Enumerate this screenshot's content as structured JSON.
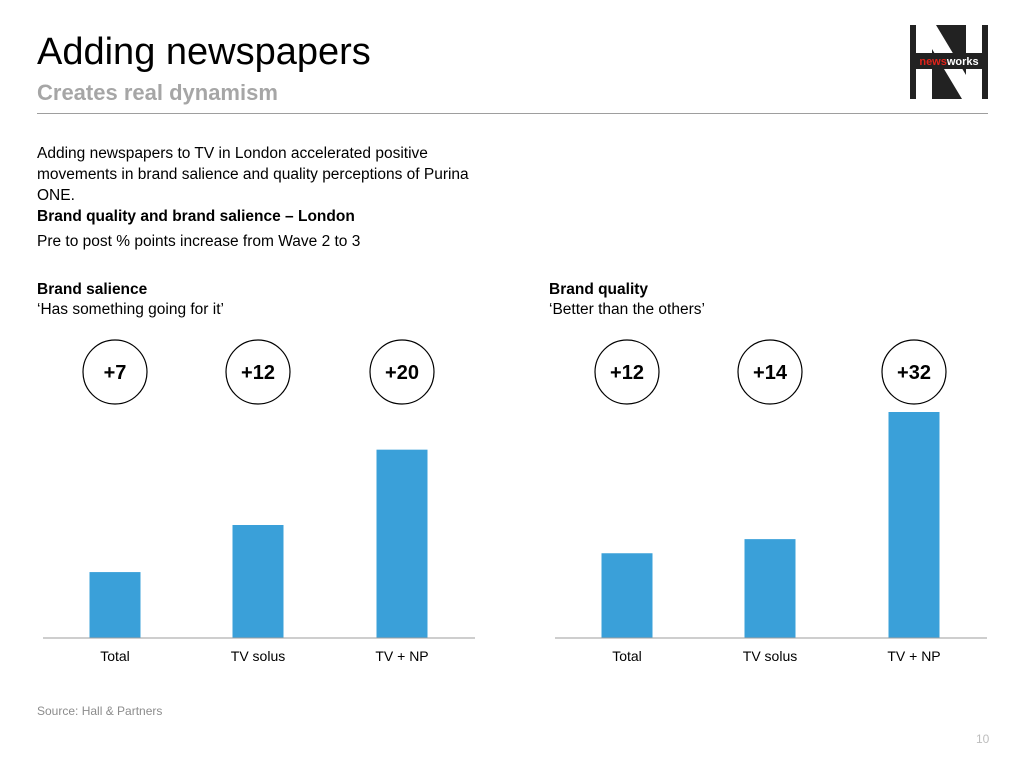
{
  "header": {
    "title": "Adding newspapers",
    "subtitle": "Creates real dynamism",
    "logo_text_a": "news",
    "logo_text_b": "works"
  },
  "intro": {
    "paragraph": "Adding newspapers to TV in London accelerated positive movements in brand salience and quality perceptions of Purina ONE.",
    "heading": "Brand quality and brand salience – London",
    "note": "Pre to post % points increase from Wave 2 to 3"
  },
  "colors": {
    "bar": "#3aa0d9",
    "subtitle": "#a6a6a6",
    "rule": "#9e9e9e"
  },
  "chart_data": [
    {
      "type": "bar",
      "title": "Brand salience",
      "subtitle": "‘Has something going for it’",
      "categories": [
        "Total",
        "TV solus",
        "TV + NP"
      ],
      "values": [
        7,
        12,
        20
      ],
      "data_labels": [
        "+7",
        "+12",
        "+20"
      ],
      "xlabel": "",
      "ylabel": "",
      "ylim": [
        0,
        24
      ],
      "grid": false
    },
    {
      "type": "bar",
      "title": "Brand quality",
      "subtitle": "‘Better than the others’",
      "categories": [
        "Total",
        "TV solus",
        "TV + NP"
      ],
      "values": [
        12,
        14,
        32
      ],
      "data_labels": [
        "+12",
        "+14",
        "+32"
      ],
      "xlabel": "",
      "ylabel": "",
      "ylim": [
        0,
        32
      ],
      "grid": false
    }
  ],
  "footer": {
    "source": "Source: Hall & Partners",
    "page": "10"
  }
}
